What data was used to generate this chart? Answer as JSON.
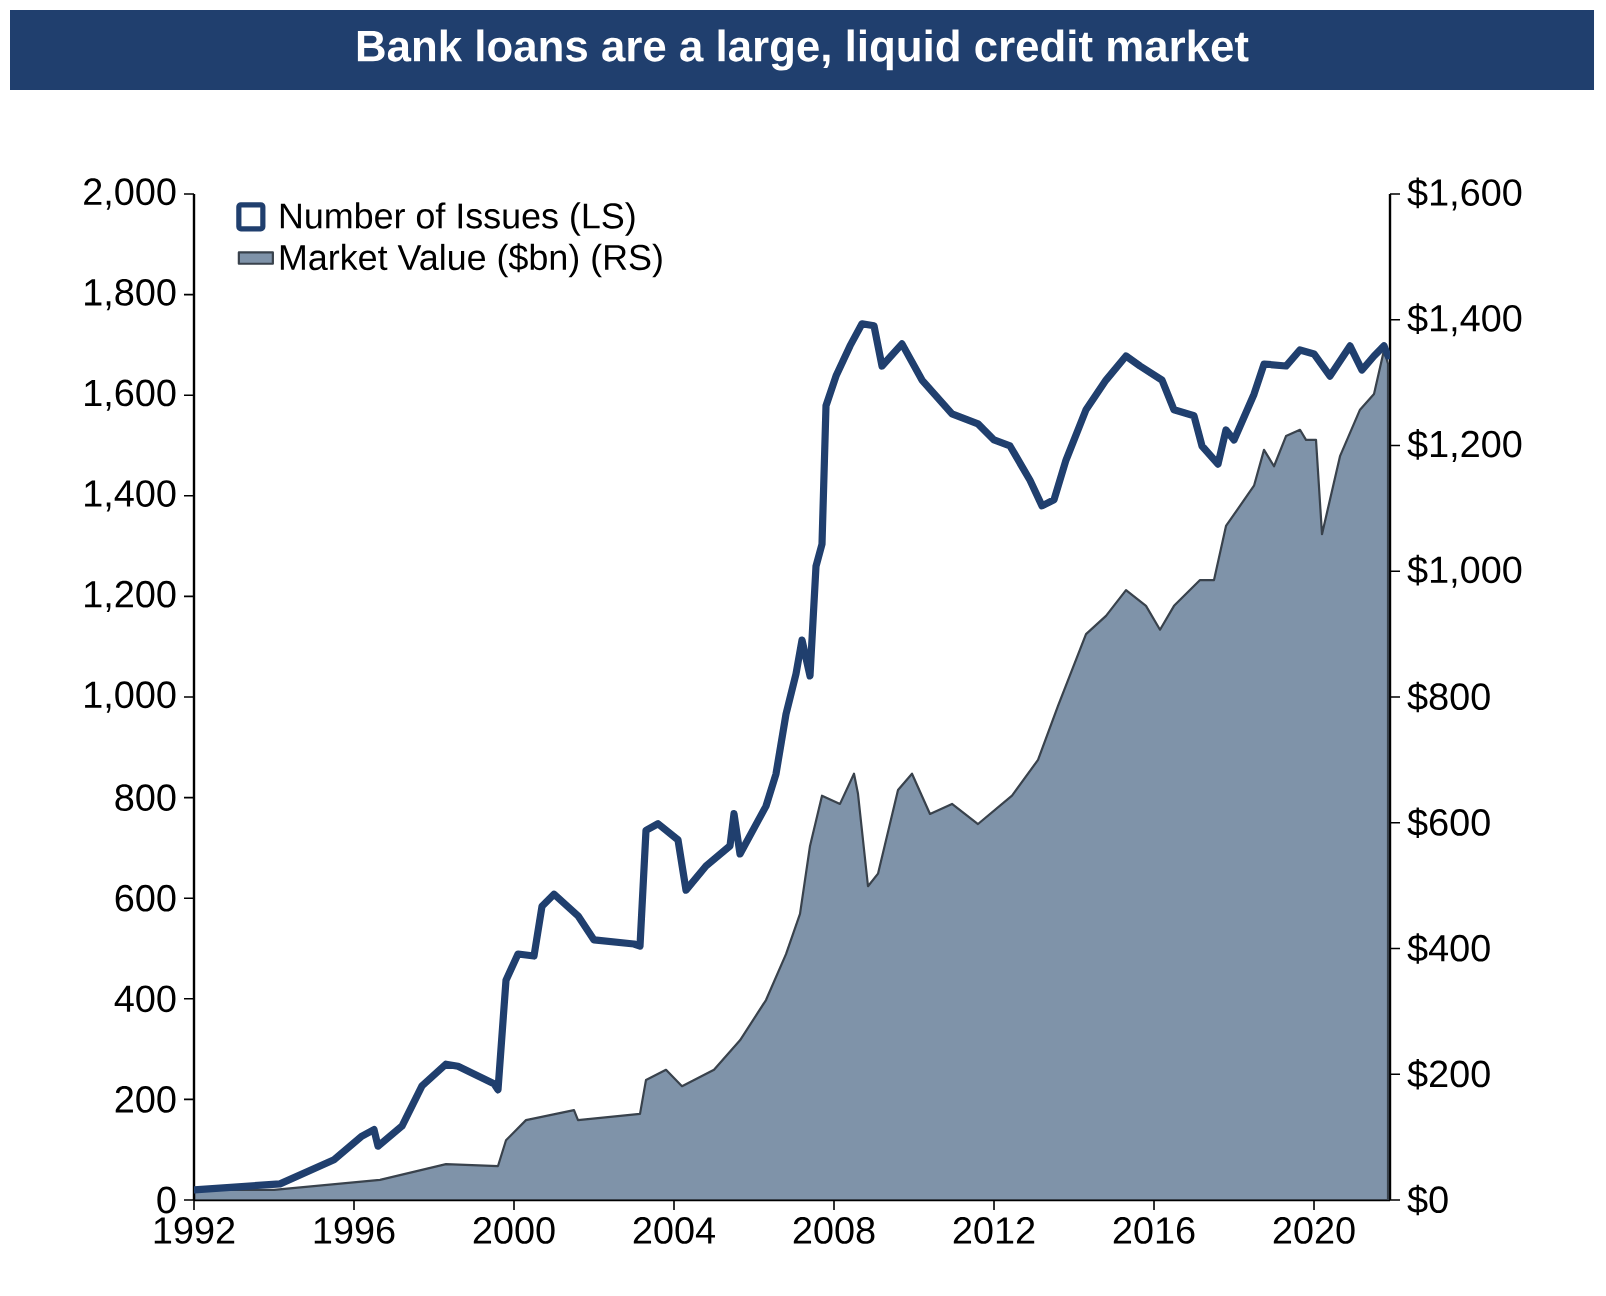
{
  "chart_data": {
    "type": "line",
    "title": "Bank loans are a large, liquid credit market",
    "xlim": [
      1992,
      2021.9
    ],
    "xticks": [
      1992,
      1996,
      2000,
      2004,
      2008,
      2012,
      2016,
      2020
    ],
    "ylim": [
      0,
      2000
    ],
    "yticks": [
      {
        "value": 0,
        "label": "0"
      },
      {
        "value": 200,
        "label": "200"
      },
      {
        "value": 400,
        "label": "400"
      },
      {
        "value": 600,
        "label": "600"
      },
      {
        "value": 800,
        "label": "800"
      },
      {
        "value": 1000,
        "label": "1,000"
      },
      {
        "value": 1200,
        "label": "1,200"
      },
      {
        "value": 1400,
        "label": "1,400"
      },
      {
        "value": 1600,
        "label": "1,600"
      },
      {
        "value": 1800,
        "label": "1,800"
      },
      {
        "value": 2000,
        "label": "2,000"
      }
    ],
    "y2lim": [
      0,
      1600
    ],
    "y2ticks": [
      {
        "value": 0,
        "label": "$0"
      },
      {
        "value": 200,
        "label": "$200"
      },
      {
        "value": 400,
        "label": "$400"
      },
      {
        "value": 600,
        "label": "$600"
      },
      {
        "value": 800,
        "label": "$800"
      },
      {
        "value": 1000,
        "label": "$1,000"
      },
      {
        "value": 1200,
        "label": "$1,200"
      },
      {
        "value": 1400,
        "label": "$1,400"
      },
      {
        "value": 1600,
        "label": "$1,600"
      }
    ],
    "legend": "top left",
    "grid": false,
    "series": [
      {
        "name": "Market Value ($bn) (RS)",
        "type": "area",
        "axis": "y2",
        "color": "#7f93a9",
        "x": [
          1992,
          1994,
          1996.65,
          1998.3,
          1999.6,
          1999.8,
          2000.3,
          2001.5,
          2001.6,
          2003.15,
          2003.3,
          2003.8,
          2004.2,
          2005,
          2005.65,
          2006.3,
          2006.8,
          2007.15,
          2007.4,
          2007.7,
          2008.15,
          2008.5,
          2008.6,
          2008.85,
          2009.1,
          2009.6,
          2009.95,
          2010.4,
          2010.95,
          2011.6,
          2012.45,
          2013.1,
          2013.6,
          2014.3,
          2014.8,
          2015.3,
          2015.8,
          2016.15,
          2016.5,
          2017.15,
          2017.5,
          2017.8,
          2018.5,
          2018.75,
          2019,
          2019.3,
          2019.65,
          2019.8,
          2020.05,
          2020.2,
          2020.65,
          2021.15,
          2021.5,
          2021.75,
          2021.85
        ],
        "values": [
          16,
          16,
          32,
          57,
          54,
          95,
          127,
          143,
          127,
          137,
          191,
          207,
          181,
          207,
          254,
          318,
          391,
          455,
          563,
          643,
          630,
          678,
          646,
          499,
          519,
          652,
          678,
          614,
          630,
          598,
          643,
          700,
          786,
          900,
          929,
          970,
          945,
          907,
          945,
          986,
          986,
          1072,
          1136,
          1193,
          1167,
          1215,
          1225,
          1209,
          1209,
          1059,
          1183,
          1257,
          1282,
          1352,
          1330
        ]
      },
      {
        "name": "Number of Issues (LS)",
        "color": "#203f6e",
        "x": [
          1992,
          1994.15,
          1995.5,
          1996.2,
          1996.5,
          1996.6,
          1997.2,
          1997.7,
          1998.3,
          1998.6,
          1999.5,
          1999.6,
          1999.8,
          2000.1,
          2000.5,
          2000.7,
          2001,
          2001.6,
          2002,
          2003,
          2003.15,
          2003.3,
          2003.6,
          2004.1,
          2004.3,
          2004.8,
          2005.4,
          2005.5,
          2005.65,
          2006.3,
          2006.55,
          2006.8,
          2007.05,
          2007.2,
          2007.4,
          2007.55,
          2007.7,
          2007.8,
          2008.05,
          2008.4,
          2008.7,
          2009,
          2009.2,
          2009.7,
          2010.2,
          2010.95,
          2011.6,
          2012,
          2012.4,
          2012.9,
          2013.2,
          2013.5,
          2013.8,
          2014.3,
          2014.8,
          2015.3,
          2015.65,
          2016.2,
          2016.5,
          2017,
          2017.2,
          2017.6,
          2017.8,
          2018,
          2018.5,
          2018.75,
          2019.3,
          2019.65,
          2020,
          2020.4,
          2020.9,
          2021.2,
          2021.5,
          2021.75,
          2021.85
        ],
        "values": [
          20,
          32,
          80,
          127,
          140,
          107,
          147,
          227,
          270,
          266,
          231,
          219,
          437,
          489,
          485,
          584,
          608,
          565,
          517,
          509,
          505,
          735,
          748,
          716,
          616,
          664,
          704,
          768,
          688,
          783,
          847,
          966,
          1046,
          1113,
          1042,
          1260,
          1304,
          1579,
          1638,
          1698,
          1742,
          1738,
          1658,
          1702,
          1630,
          1563,
          1543,
          1511,
          1499,
          1431,
          1380,
          1392,
          1471,
          1571,
          1630,
          1678,
          1658,
          1630,
          1571,
          1559,
          1499,
          1463,
          1531,
          1511,
          1602,
          1662,
          1658,
          1690,
          1682,
          1638,
          1698,
          1650,
          1678,
          1698,
          1678
        ]
      }
    ]
  }
}
